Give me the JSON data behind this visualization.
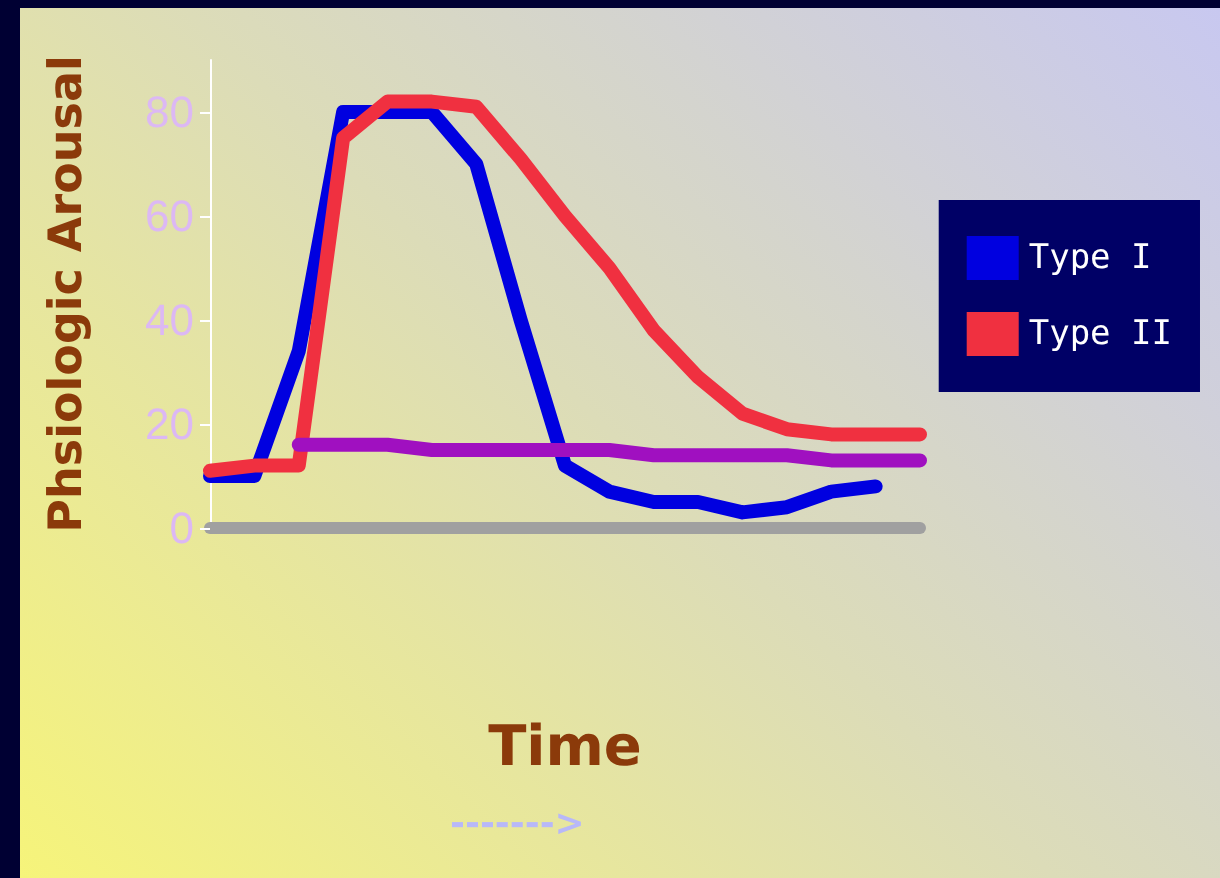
{
  "chart_data": {
    "type": "line",
    "categories": [
      null,
      null,
      null,
      null,
      null,
      null,
      null,
      null,
      null,
      null,
      null,
      null,
      null,
      null,
      null,
      null,
      null
    ],
    "series": [
      {
        "name": "Type I",
        "color": "#0000e0",
        "values": [
          10,
          10,
          34,
          80,
          80,
          80,
          70,
          40,
          12,
          7,
          5,
          5,
          3,
          4,
          7,
          8,
          null
        ]
      },
      {
        "name": "Type II",
        "color": "#f03040",
        "values": [
          11,
          12,
          12,
          75,
          82,
          82,
          81,
          71,
          60,
          50,
          38,
          29,
          22,
          19,
          18,
          18,
          18
        ]
      },
      {
        "color": "#a010c0",
        "values": [
          null,
          null,
          16,
          16,
          16,
          15,
          15,
          15,
          15,
          15,
          14,
          14,
          14,
          14,
          13,
          13,
          13
        ]
      }
    ],
    "ylabel": "Phsiologic Arousal",
    "xlabel": "Time",
    "annotations": [
      "------->"
    ],
    "ylim": [
      0,
      90
    ],
    "yticks": [
      0,
      20,
      40,
      60,
      80
    ],
    "grid": false,
    "legend": "right",
    "marker": "none",
    "line_style": "solid"
  }
}
